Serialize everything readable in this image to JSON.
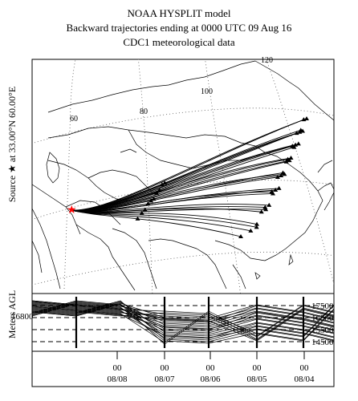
{
  "title": {
    "line1": "NOAA HYSPLIT model",
    "line2": "Backward trajectories ending at 0000 UTC 09 Aug 16",
    "line3": "CDC1 meteorological data"
  },
  "source_label": "Source ★ at 33.00°N 60.00°E",
  "map": {
    "lon_labels": [
      "60",
      "80",
      "100",
      "120"
    ],
    "source_marker_color": "#ff0000",
    "trajectory_color": "#000000"
  },
  "vertical_panel": {
    "ylabel": "Meters AGL",
    "left_value": "16800",
    "right_values": [
      "17500",
      "16500",
      "15500",
      "14500"
    ]
  },
  "time_axis": {
    "hour_labels": [
      "00",
      "00",
      "00",
      "00",
      "00"
    ],
    "date_labels": [
      "08/08",
      "08/07",
      "08/06",
      "08/05",
      "08/04"
    ]
  }
}
